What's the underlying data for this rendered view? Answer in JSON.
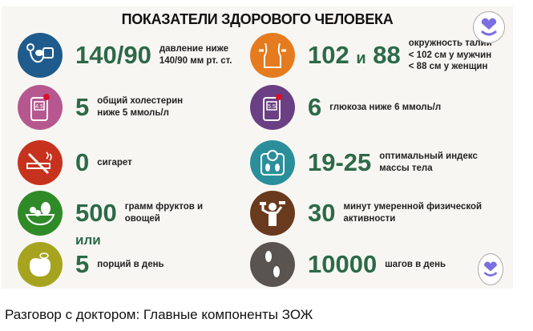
{
  "title": "ПОКАЗАТЕЛИ ЗДОРОВОГО ЧЕЛОВЕКА",
  "left": [
    {
      "icon": "blood-pressure-icon",
      "color": "#1f5b8c",
      "value": "140/90",
      "desc": "давление ниже\n140/90 мм рт. ст."
    },
    {
      "icon": "cholesterol-meter-icon",
      "color": "#b6588f",
      "value": "5",
      "desc": "общий холестерин\nниже 5 ммоль/л",
      "screen": "4.5"
    },
    {
      "icon": "no-smoking-icon",
      "color": "#c7321e",
      "value": "0",
      "desc": "сигарет"
    },
    {
      "icon": "fruit-bowl-icon",
      "color": "#2f8a28",
      "value": "500",
      "desc": "грамм фруктов и\nовощей"
    },
    {
      "icon": "apple-icon",
      "color": "#a6a41e",
      "value": "5",
      "desc": "порций в день"
    }
  ],
  "or_label": "или",
  "right": [
    {
      "icon": "waist-icon",
      "color": "#e57b1f",
      "value_a": "102",
      "value_join": "и",
      "value_b": "88",
      "desc": "окружность талии\n< 102 см у мужчин\n< 88 см у женщин"
    },
    {
      "icon": "glucose-meter-icon",
      "color": "#6b3f83",
      "value": "6",
      "desc": "глюкоза ниже 6 ммоль/л",
      "screen": "5.5"
    },
    {
      "icon": "scale-icon",
      "color": "#2b8f9b",
      "value": "19-25",
      "desc": "оптимальный индекс\nмассы тела"
    },
    {
      "icon": "dumbbell-person-icon",
      "color": "#6a3a1e",
      "value": "30",
      "desc": "минут умеренной физической\nактивности"
    },
    {
      "icon": "footprints-icon",
      "color": "#5a5451",
      "value": "10000",
      "desc": "шагов в день"
    }
  ],
  "badge_color": "#7b6fe0",
  "caption": "Разговор с доктором: Главные компоненты ЗОЖ"
}
